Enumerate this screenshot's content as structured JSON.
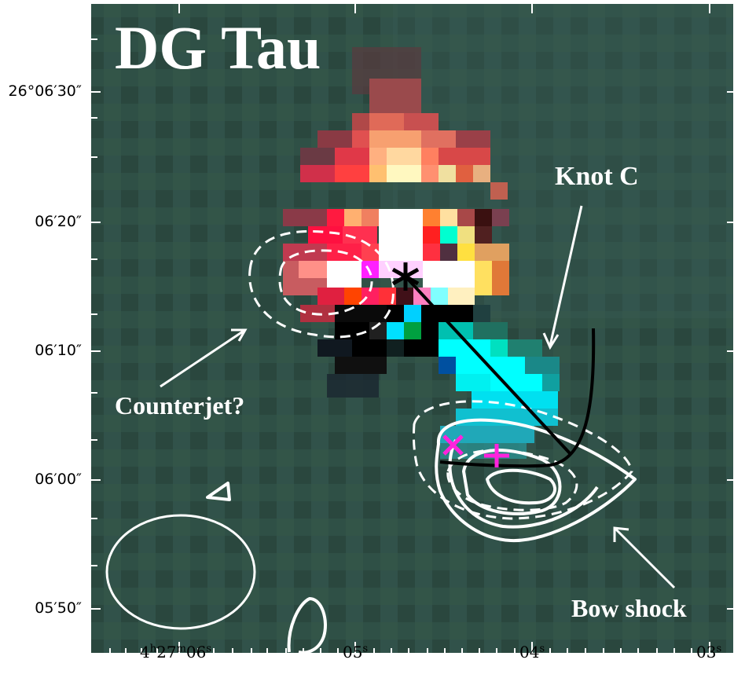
{
  "title": "DG Tau",
  "axes": {
    "y_ticks": [
      "26°06′30″",
      "06′20″",
      "06′10″",
      "06′00″",
      "05′50″"
    ],
    "x_ticks": [
      {
        "h": "4",
        "m": "27",
        "s": "06"
      },
      {
        "s": "05"
      },
      {
        "s": "04"
      },
      {
        "s": "03"
      }
    ]
  },
  "annotations": {
    "knot_c": "Knot C",
    "counterjet": "Counterjet?",
    "bow_shock": "Bow shock"
  },
  "colors": {
    "background": "#2f4f44",
    "contour": "#ffffff",
    "jet_line": "#000000",
    "markers": "#ff22dd"
  },
  "markers": {
    "star": "asterisk-icon",
    "cross": "x-cross-icon",
    "plus": "plus-icon"
  }
}
